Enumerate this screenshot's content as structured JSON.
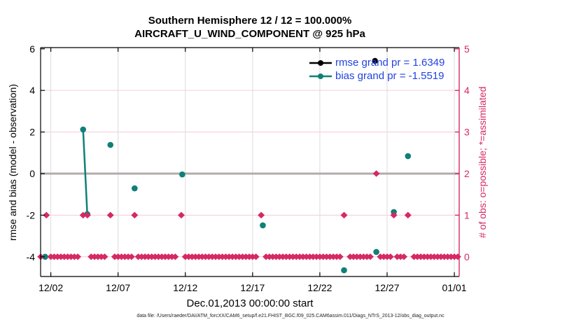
{
  "header": {
    "title": "Southern Hemisphere 12 / 12 = 100.000%",
    "subtitle": "AIRCRAFT_U_WIND_COMPONENT @ 925 hPa"
  },
  "legend": {
    "items": [
      {
        "name": "rmse",
        "label": "rmse grand pr = 1.6349",
        "color": "#000000"
      },
      {
        "name": "bias",
        "label": "bias grand pr = -1.5519",
        "color": "#0e8077"
      }
    ],
    "text_color": "#2243df"
  },
  "footer": {
    "datafile": "data file: /Users/raeder/DAI/ATM_forcXX/CAM6_setup/f.e21.FHIST_BGC.f09_025.CAM6assim.011/Diags_NTrS_2013-12/obs_diag_output.nc"
  },
  "colors": {
    "crimson": "#d62963",
    "teal": "#0e8077",
    "black": "#000000",
    "zero_line_gray": "#b3abab",
    "h_grid_pink": "#f5ccd8",
    "v_grid_gray": "#dbdbdb",
    "legend_text_blue": "#2243df"
  },
  "chart_data": {
    "type": "scatter",
    "title": "Southern Hemisphere 12 / 12 = 100.000%",
    "subtitle": "AIRCRAFT_U_WIND_COMPONENT @ 925 hPa",
    "x_axis": {
      "label": "Dec.01,2013 00:00:00 start",
      "tick_labels": [
        "12/02",
        "12/07",
        "12/12",
        "12/17",
        "12/22",
        "12/27",
        "01/01"
      ],
      "tick_days": [
        2,
        7,
        12,
        17,
        22,
        27,
        32
      ],
      "range_days": [
        1.24,
        32.36
      ]
    },
    "y_left": {
      "label": "rmse and bias (model - observation)",
      "ticks": [
        6,
        4,
        2,
        0,
        -2,
        -4
      ],
      "range": [
        -4.95,
        6.06
      ],
      "zero_line_value": 0
    },
    "y_right": {
      "label": "# of obs: o=possible; *=assimilated",
      "ticks": [
        5,
        4,
        3,
        2,
        1,
        0
      ],
      "units_per_left_unit": 0.5,
      "offset": "right value r maps to left value v = 2*r - 4"
    },
    "grid": {
      "horizontal": true,
      "vertical": true
    },
    "legend_position": "top-right-inside",
    "series": [
      {
        "name": "rmse",
        "legend_label": "rmse grand pr = 1.6349",
        "grand_value": 1.6349,
        "color": "#000000",
        "marker": "circle",
        "points_day_value": [
          [
            26.1,
            5.42
          ]
        ]
      },
      {
        "name": "bias",
        "legend_label": "bias grand pr = -1.5519",
        "grand_value": -1.5519,
        "color": "#0e8077",
        "marker": "circle",
        "points_day_value": [
          [
            1.58,
            -4.0
          ],
          [
            4.4,
            2.12
          ],
          [
            4.71,
            -1.95
          ],
          [
            6.43,
            1.38
          ],
          [
            8.23,
            -0.71
          ],
          [
            11.77,
            -0.04
          ],
          [
            17.76,
            -2.49
          ],
          [
            23.8,
            -4.65
          ],
          [
            26.2,
            -3.77
          ],
          [
            27.5,
            -1.85
          ],
          [
            28.55,
            0.84
          ]
        ],
        "line_segments_day_value": [
          [
            [
              4.4,
              2.12
            ],
            [
              4.71,
              -1.95
            ]
          ]
        ]
      },
      {
        "name": "obs_count_possible",
        "color": "#d62963",
        "marker": "diamond",
        "axis": "right",
        "nonzero_points_day_count": [
          [
            1.67,
            1
          ],
          [
            4.4,
            1
          ],
          [
            4.72,
            1
          ],
          [
            6.43,
            1
          ],
          [
            8.23,
            1
          ],
          [
            11.7,
            1
          ],
          [
            17.64,
            1
          ],
          [
            23.8,
            1
          ],
          [
            26.2,
            2
          ],
          [
            27.5,
            1
          ],
          [
            28.55,
            1
          ]
        ],
        "zero_row": {
          "start_day": 1.25,
          "end_day": 32.25,
          "step_days": 0.25,
          "count": 0,
          "gap_rule": "no zero marker within 0.22 day of a nonzero time"
        }
      }
    ]
  }
}
